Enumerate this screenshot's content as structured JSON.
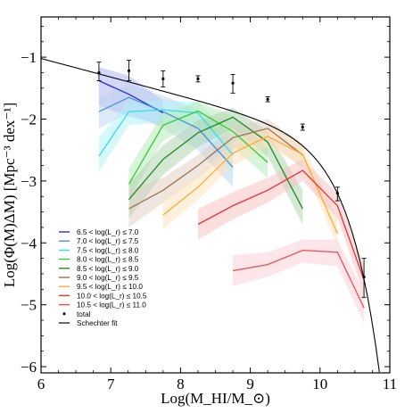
{
  "chart_data": {
    "type": "line",
    "title": "",
    "xlabel": "Log(M_HI/M_⊙)",
    "ylabel": "Log(Φ(M)ΔM) [Mpc⁻³ dex⁻¹]",
    "xlim": [
      6,
      11
    ],
    "ylim": [
      -6.1,
      -0.35
    ],
    "xticks": [
      "6",
      "7",
      "8",
      "9",
      "10",
      "11"
    ],
    "yticks": [
      "-1",
      "-2",
      "-3",
      "-4",
      "-5",
      "-6"
    ],
    "grid": false,
    "legend_position": "lower-left",
    "series": [
      {
        "name": "6.5 < log(L_r) ≤ 7.0",
        "color": "#2a2ae0",
        "band": "#aab0f0",
        "x": [
          6.83,
          7.26,
          7.75
        ],
        "y": [
          -1.38,
          -1.6,
          -1.9
        ],
        "lower": [
          -1.78,
          -1.96,
          -2.1
        ],
        "upper": [
          -1.16,
          -1.3,
          -1.7
        ]
      },
      {
        "name": "7.0 < log(L_r) ≤ 7.5",
        "color": "#4f8fd8",
        "band": "#b9d3ef",
        "x": [
          6.83,
          7.26,
          7.75,
          8.25,
          8.75
        ],
        "y": [
          -1.88,
          -1.65,
          -1.88,
          -2.15,
          -2.78
        ],
        "lower": [
          -2.15,
          -1.9,
          -2.15,
          -2.5,
          -3.1
        ],
        "upper": [
          -1.65,
          -1.45,
          -1.62,
          -1.85,
          -2.45
        ]
      },
      {
        "name": "7.5 < log(L_r) ≤ 8.0",
        "color": "#33ddee",
        "band": "#aef1f7",
        "x": [
          6.83,
          7.26,
          7.75,
          8.25,
          8.75
        ],
        "y": [
          -2.6,
          -1.88,
          -1.85,
          -1.9,
          -2.58
        ],
        "lower": [
          -2.85,
          -2.1,
          -2.05,
          -2.15,
          -2.92
        ],
        "upper": [
          -2.3,
          -1.7,
          -1.7,
          -1.72,
          -2.3
        ]
      },
      {
        "name": "8.0 < log(L_r) ≤ 8.5",
        "color": "#33cc33",
        "band": "#b3ebb3",
        "x": [
          7.26,
          7.75,
          8.25,
          8.75,
          9.25
        ],
        "y": [
          -3.05,
          -2.1,
          -1.87,
          -2.2,
          -2.7
        ],
        "lower": [
          -3.3,
          -2.35,
          -2.05,
          -2.45,
          -2.95
        ],
        "upper": [
          -2.8,
          -1.9,
          -1.72,
          -1.95,
          -2.48
        ]
      },
      {
        "name": "8.5 < log(L_r) ≤ 9.0",
        "color": "#228822",
        "band": "#a9d2a9",
        "x": [
          7.26,
          7.75,
          8.25,
          8.75,
          9.25,
          9.75
        ],
        "y": [
          -3.3,
          -2.65,
          -2.22,
          -1.97,
          -2.37,
          -3.45
        ],
        "lower": [
          -3.6,
          -2.9,
          -2.45,
          -2.15,
          -2.6,
          -3.7
        ],
        "upper": [
          -3.05,
          -2.42,
          -2.02,
          -1.82,
          -2.2,
          -3.15
        ]
      },
      {
        "name": "9.0 < log(L_r) ≤ 9.5",
        "color": "#a07050",
        "band": "#ddcdbf",
        "x": [
          7.26,
          7.75,
          8.25,
          8.75,
          9.25,
          9.75
        ],
        "y": [
          -3.45,
          -3.15,
          -2.75,
          -2.3,
          -2.15,
          -2.58
        ],
        "lower": [
          -3.75,
          -3.35,
          -2.95,
          -2.5,
          -2.35,
          -2.8
        ],
        "upper": [
          -3.15,
          -2.95,
          -2.58,
          -2.12,
          -2.0,
          -2.4
        ]
      },
      {
        "name": "9.5 < log(L_r) ≤ 10.0",
        "color": "#ffaa33",
        "band": "#ffe1b8",
        "x": [
          7.75,
          8.25,
          8.75,
          9.25,
          9.75,
          10.25
        ],
        "y": [
          -3.55,
          -3.1,
          -2.55,
          -2.28,
          -2.57,
          -3.85
        ],
        "lower": [
          -3.78,
          -3.3,
          -2.75,
          -2.45,
          -2.75,
          -4.05
        ],
        "upper": [
          -3.3,
          -2.9,
          -2.37,
          -2.12,
          -2.4,
          -3.6
        ]
      },
      {
        "name": "10.0 < log(L_r) ≤ 10.5",
        "color": "#e83030",
        "band": "#f8c0c0",
        "x": [
          8.25,
          8.75,
          9.25,
          9.75,
          10.25,
          10.63
        ],
        "y": [
          -3.7,
          -3.4,
          -3.15,
          -2.83,
          -3.4,
          -4.6
        ],
        "lower": [
          -3.95,
          -3.62,
          -3.35,
          -3.0,
          -3.6,
          -4.85
        ],
        "upper": [
          -3.45,
          -3.18,
          -2.95,
          -2.65,
          -3.2,
          -4.35
        ]
      },
      {
        "name": "10.5 < log(L_r) ≤ 11.0",
        "color": "#e85050",
        "band": "#f9cdd3",
        "x": [
          8.75,
          9.25,
          9.75,
          10.25,
          10.63
        ],
        "y": [
          -4.45,
          -4.35,
          -4.12,
          -4.15,
          -5.05
        ],
        "lower": [
          -4.7,
          -4.55,
          -4.32,
          -4.38,
          -5.3
        ],
        "upper": [
          -4.2,
          -4.15,
          -3.95,
          -3.95,
          -4.8
        ]
      }
    ],
    "total": {
      "name": "total",
      "x": [
        6.83,
        7.26,
        7.75,
        8.25,
        8.75,
        9.25,
        9.75,
        10.25,
        10.63
      ],
      "y": [
        -1.25,
        -1.22,
        -1.35,
        -1.35,
        -1.42,
        -1.68,
        -2.13,
        -3.2,
        -4.55
      ],
      "err_lo": [
        -1.38,
        -1.38,
        -1.48,
        -1.4,
        -1.58,
        -1.72,
        -2.18,
        -3.32,
        -4.88
      ],
      "err_hi": [
        -1.08,
        -1.05,
        -1.22,
        -1.3,
        -1.28,
        -1.64,
        -2.08,
        -3.1,
        -4.25
      ]
    },
    "schechter_fit": {
      "name": "Schechter fit",
      "phi_star_log": -2.2,
      "log_m_star": 9.93,
      "alpha": -1.3
    }
  }
}
